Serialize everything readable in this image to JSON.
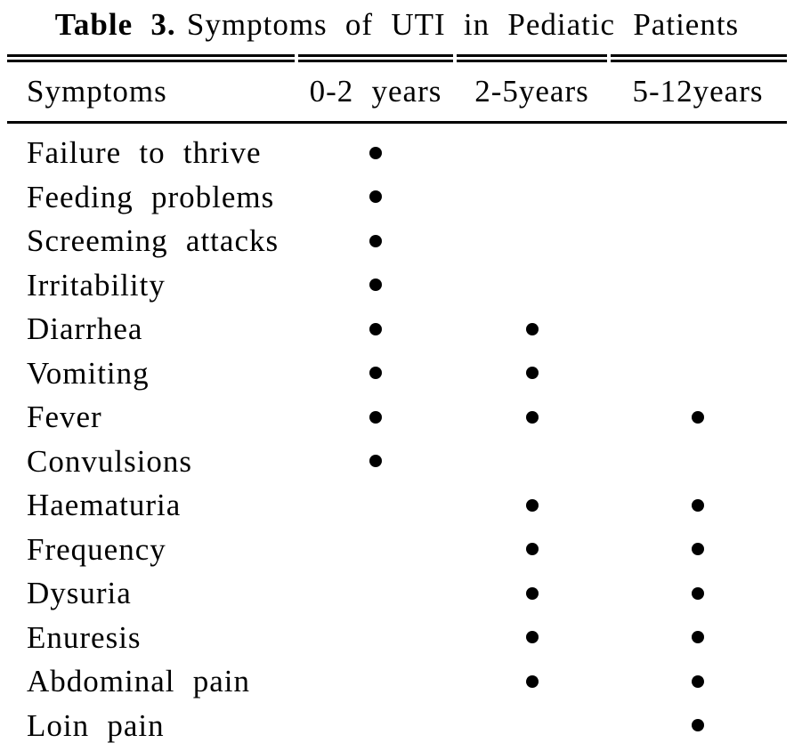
{
  "page": {
    "background": "#ffffff",
    "text_color": "#000000",
    "rule_color": "#000000"
  },
  "caption": {
    "label": "Table 3.",
    "title": "Symptoms of UTI in Pediatic Patients"
  },
  "table": {
    "columns": [
      {
        "key": "symptom",
        "label": "Symptoms"
      },
      {
        "key": "age_0_2",
        "label": "0-2 years"
      },
      {
        "key": "age_2_5",
        "label": "2-5years"
      },
      {
        "key": "age_5_12",
        "label": "5-12years"
      }
    ],
    "bullet_glyph": "●",
    "rows": [
      {
        "symptom": "Failure to thrive",
        "marks": [
          true,
          false,
          false
        ]
      },
      {
        "symptom": "Feeding problems",
        "marks": [
          true,
          false,
          false
        ]
      },
      {
        "symptom": "Screeming attacks",
        "marks": [
          true,
          false,
          false
        ]
      },
      {
        "symptom": "Irritability",
        "marks": [
          true,
          false,
          false
        ]
      },
      {
        "symptom": "Diarrhea",
        "marks": [
          true,
          true,
          false
        ]
      },
      {
        "symptom": "Vomiting",
        "marks": [
          true,
          true,
          false
        ]
      },
      {
        "symptom": "Fever",
        "marks": [
          true,
          true,
          true
        ]
      },
      {
        "symptom": "Convulsions",
        "marks": [
          true,
          false,
          false
        ]
      },
      {
        "symptom": "Haematuria",
        "marks": [
          false,
          true,
          true
        ]
      },
      {
        "symptom": "Frequency",
        "marks": [
          false,
          true,
          true
        ]
      },
      {
        "symptom": "Dysuria",
        "marks": [
          false,
          true,
          true
        ]
      },
      {
        "symptom": "Enuresis",
        "marks": [
          false,
          true,
          true
        ]
      },
      {
        "symptom": "Abdominal pain",
        "marks": [
          false,
          true,
          true
        ]
      },
      {
        "symptom": "Loin pain",
        "marks": [
          false,
          false,
          true
        ]
      }
    ]
  }
}
